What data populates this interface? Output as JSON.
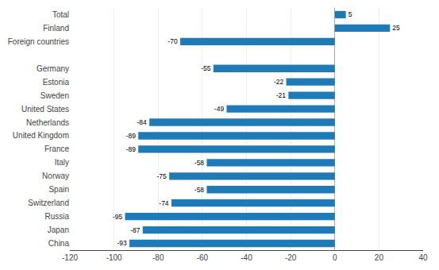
{
  "chart_data": {
    "type": "bar",
    "orientation": "horizontal",
    "categories": [
      "China",
      "Japan",
      "Russia",
      "Switzerland",
      "Spain",
      "Norway",
      "Italy",
      "France",
      "United Kingdom",
      "Netherlands",
      "United States",
      "Sweden",
      "Estonia",
      "Germany",
      null,
      "Foreign countries",
      "Finland",
      "Total"
    ],
    "values": [
      -93,
      -87,
      -95,
      -74,
      -58,
      -75,
      -58,
      -89,
      -89,
      -84,
      -49,
      -21,
      -22,
      -55,
      null,
      -70,
      25,
      5
    ],
    "color": "#1f7ab8",
    "xlim": [
      -120,
      40
    ],
    "xticks": [
      -120,
      -100,
      -80,
      -60,
      -40,
      -20,
      0,
      20,
      40
    ],
    "grid": true,
    "data_labels": true
  }
}
